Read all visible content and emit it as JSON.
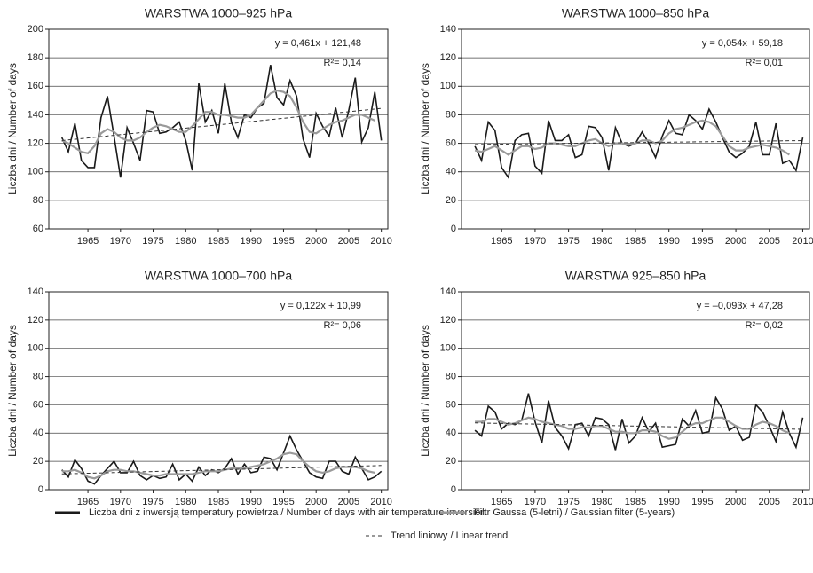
{
  "chart_data": [
    {
      "type": "line",
      "title": "WARSTWA 1000–925 hPa",
      "ylabel": "Liczba dni / Number of days",
      "annotations": [
        "y = 0,461x + 121,48",
        "R²= 0,14"
      ],
      "x": [
        1961,
        1962,
        1963,
        1964,
        1965,
        1966,
        1967,
        1968,
        1969,
        1970,
        1971,
        1972,
        1973,
        1974,
        1975,
        1976,
        1977,
        1978,
        1979,
        1980,
        1981,
        1982,
        1983,
        1984,
        1985,
        1986,
        1987,
        1988,
        1989,
        1990,
        1991,
        1992,
        1993,
        1994,
        1995,
        1996,
        1997,
        1998,
        1999,
        2000,
        2001,
        2002,
        2003,
        2004,
        2005,
        2006,
        2007,
        2008,
        2009,
        2010
      ],
      "xlim": [
        1959,
        2011
      ],
      "xticks": [
        1965,
        1970,
        1975,
        1980,
        1985,
        1990,
        1995,
        2000,
        2005,
        2010
      ],
      "ylim": [
        60,
        200
      ],
      "yticks": [
        60,
        80,
        100,
        120,
        140,
        160,
        180,
        200
      ],
      "grid": true,
      "series": [
        {
          "name": "Liczba dni z inwersją temperatury powietrza / Number of days with air temperature inversion",
          "color": "#1a1a1a",
          "values": [
            124,
            114,
            134,
            108,
            103,
            103,
            138,
            153,
            125,
            96,
            131,
            120,
            108,
            143,
            142,
            127,
            128,
            131,
            135,
            122,
            101,
            162,
            135,
            143,
            127,
            162,
            135,
            124,
            140,
            138,
            145,
            148,
            175,
            152,
            147,
            164,
            153,
            123,
            110,
            141,
            132,
            125,
            145,
            124,
            143,
            166,
            121,
            131,
            156,
            122
          ]
        },
        {
          "name": "Filtr Gaussa (5-letni) / Gaussian filter (5-years)",
          "color": "#9a9a9a",
          "values": [
            122,
            120,
            117,
            114,
            113,
            118,
            127,
            130,
            128,
            124,
            122,
            122,
            124,
            128,
            131,
            133,
            132,
            130,
            128,
            128,
            132,
            137,
            142,
            142,
            140,
            140,
            139,
            138,
            138,
            140,
            145,
            150,
            155,
            157,
            156,
            153,
            145,
            135,
            128,
            127,
            130,
            133,
            135,
            136,
            138,
            140,
            140,
            138,
            136,
            null
          ]
        },
        {
          "name": "Trend liniowy / Linear trend",
          "color": "#333333",
          "dash": true,
          "x": [
            1961,
            2010
          ],
          "values": [
            121.9,
            144.5
          ]
        }
      ]
    },
    {
      "type": "line",
      "title": "WARSTWA 1000–850 hPa",
      "ylabel": "Liczba dni / Number of days",
      "annotations": [
        "y = 0,054x + 59,18",
        "R²= 0,01"
      ],
      "x": [
        1961,
        1962,
        1963,
        1964,
        1965,
        1966,
        1967,
        1968,
        1969,
        1970,
        1971,
        1972,
        1973,
        1974,
        1975,
        1976,
        1977,
        1978,
        1979,
        1980,
        1981,
        1982,
        1983,
        1984,
        1985,
        1986,
        1987,
        1988,
        1989,
        1990,
        1991,
        1992,
        1993,
        1994,
        1995,
        1996,
        1997,
        1998,
        1999,
        2000,
        2001,
        2002,
        2003,
        2004,
        2005,
        2006,
        2007,
        2008,
        2009,
        2010
      ],
      "xlim": [
        1959,
        2011
      ],
      "xticks": [
        1965,
        1970,
        1975,
        1980,
        1985,
        1990,
        1995,
        2000,
        2005,
        2010
      ],
      "ylim": [
        0,
        140
      ],
      "yticks": [
        0,
        20,
        40,
        60,
        80,
        100,
        120,
        140
      ],
      "grid": true,
      "series": [
        {
          "color": "#1a1a1a",
          "values": [
            58,
            48,
            75,
            69,
            43,
            36,
            62,
            66,
            67,
            44,
            39,
            76,
            62,
            62,
            66,
            50,
            52,
            72,
            71,
            64,
            41,
            71,
            60,
            58,
            60,
            68,
            60,
            50,
            65,
            76,
            67,
            66,
            80,
            76,
            70,
            84,
            75,
            64,
            54,
            50,
            53,
            58,
            75,
            52,
            52,
            74,
            46,
            48,
            41,
            64
          ]
        },
        {
          "color": "#9a9a9a",
          "values": [
            55,
            54,
            56,
            58,
            55,
            52,
            55,
            58,
            58,
            56,
            57,
            60,
            60,
            59,
            58,
            58,
            60,
            62,
            63,
            60,
            58,
            60,
            60,
            59,
            60,
            62,
            62,
            60,
            62,
            67,
            70,
            71,
            73,
            75,
            76,
            75,
            72,
            65,
            58,
            55,
            55,
            57,
            58,
            59,
            58,
            57,
            55,
            52,
            null,
            null
          ]
        },
        {
          "color": "#333333",
          "dash": true,
          "x": [
            1961,
            2010
          ],
          "values": [
            59.2,
            61.9
          ]
        }
      ]
    },
    {
      "type": "line",
      "title": "WARSTWA 1000–700 hPa",
      "ylabel": "Liczba dni / Number of days",
      "annotations": [
        "y = 0,122x + 10,99",
        "R²= 0,06"
      ],
      "x": [
        1961,
        1962,
        1963,
        1964,
        1965,
        1966,
        1967,
        1968,
        1969,
        1970,
        1971,
        1972,
        1973,
        1974,
        1975,
        1976,
        1977,
        1978,
        1979,
        1980,
        1981,
        1982,
        1983,
        1984,
        1985,
        1986,
        1987,
        1988,
        1989,
        1990,
        1991,
        1992,
        1993,
        1994,
        1995,
        1996,
        1997,
        1998,
        1999,
        2000,
        2001,
        2002,
        2003,
        2004,
        2005,
        2006,
        2007,
        2008,
        2009,
        2010
      ],
      "xlim": [
        1959,
        2011
      ],
      "xticks": [
        1965,
        1970,
        1975,
        1980,
        1985,
        1990,
        1995,
        2000,
        2005,
        2010
      ],
      "ylim": [
        0,
        140
      ],
      "yticks": [
        0,
        20,
        40,
        60,
        80,
        100,
        120,
        140
      ],
      "grid": true,
      "series": [
        {
          "color": "#1a1a1a",
          "values": [
            14,
            9,
            21,
            15,
            6,
            4,
            10,
            15,
            20,
            12,
            12,
            20,
            10,
            7,
            10,
            8,
            9,
            18,
            7,
            11,
            6,
            16,
            10,
            14,
            12,
            15,
            22,
            11,
            18,
            12,
            13,
            23,
            22,
            14,
            26,
            38,
            28,
            20,
            12,
            9,
            8,
            20,
            20,
            13,
            11,
            23,
            15,
            7,
            9,
            13
          ]
        },
        {
          "color": "#9a9a9a",
          "values": [
            13,
            13,
            14,
            12,
            9,
            8,
            10,
            13,
            14,
            14,
            13,
            13,
            12,
            11,
            10,
            10,
            11,
            11,
            11,
            11,
            11,
            12,
            13,
            13,
            13,
            14,
            15,
            15,
            15,
            16,
            17,
            18,
            20,
            22,
            25,
            26,
            25,
            20,
            16,
            13,
            12,
            13,
            15,
            16,
            16,
            16,
            15,
            13,
            12,
            null
          ]
        },
        {
          "color": "#333333",
          "dash": true,
          "x": [
            1961,
            2010
          ],
          "values": [
            11.1,
            17.1
          ]
        }
      ]
    },
    {
      "type": "line",
      "title": "WARSTWA 925–850 hPa",
      "ylabel": "Liczba dni / Number of days",
      "annotations": [
        "y = –0,093x + 47,28",
        "R²= 0,02"
      ],
      "x": [
        1961,
        1962,
        1963,
        1964,
        1965,
        1966,
        1967,
        1968,
        1969,
        1970,
        1971,
        1972,
        1973,
        1974,
        1975,
        1976,
        1977,
        1978,
        1979,
        1980,
        1981,
        1982,
        1983,
        1984,
        1985,
        1986,
        1987,
        1988,
        1989,
        1990,
        1991,
        1992,
        1993,
        1994,
        1995,
        1996,
        1997,
        1998,
        1999,
        2000,
        2001,
        2002,
        2003,
        2004,
        2005,
        2006,
        2007,
        2008,
        2009,
        2010
      ],
      "xlim": [
        1959,
        2011
      ],
      "xticks": [
        1965,
        1970,
        1975,
        1980,
        1985,
        1990,
        1995,
        2000,
        2005,
        2010
      ],
      "ylim": [
        0,
        140
      ],
      "yticks": [
        0,
        20,
        40,
        60,
        80,
        100,
        120,
        140
      ],
      "grid": true,
      "series": [
        {
          "color": "#1a1a1a",
          "values": [
            42,
            38,
            59,
            55,
            43,
            47,
            46,
            49,
            68,
            48,
            33,
            63,
            44,
            38,
            29,
            46,
            47,
            38,
            51,
            50,
            46,
            28,
            50,
            33,
            38,
            51,
            41,
            47,
            30,
            31,
            32,
            50,
            45,
            56,
            40,
            41,
            65,
            57,
            42,
            45,
            35,
            37,
            60,
            55,
            45,
            34,
            55,
            40,
            30,
            51
          ]
        },
        {
          "color": "#9a9a9a",
          "values": [
            48,
            48,
            50,
            50,
            48,
            46,
            47,
            49,
            51,
            50,
            48,
            47,
            46,
            45,
            43,
            43,
            44,
            44,
            45,
            45,
            43,
            41,
            41,
            40,
            40,
            42,
            42,
            41,
            38,
            36,
            37,
            41,
            45,
            47,
            47,
            49,
            51,
            51,
            48,
            45,
            43,
            43,
            46,
            48,
            47,
            45,
            42,
            40,
            null,
            null
          ]
        },
        {
          "color": "#333333",
          "dash": true,
          "x": [
            1961,
            2010
          ],
          "values": [
            47.2,
            42.7
          ]
        }
      ]
    }
  ]
}
